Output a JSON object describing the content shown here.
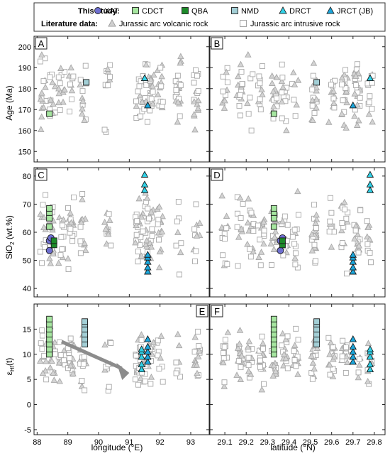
{
  "legend": {
    "this_study_label": "This study:",
    "literature_label": "Literature data:",
    "items": [
      {
        "key": "XAT",
        "label": "XAT",
        "shape": "circle",
        "fill": "#6e6fd0"
      },
      {
        "key": "CDCT",
        "label": "CDCT",
        "shape": "square",
        "fill": "#a6e6a0"
      },
      {
        "key": "QBA",
        "label": "QBA",
        "shape": "square",
        "fill": "#1d8a2a"
      },
      {
        "key": "NMD",
        "label": "NMD",
        "shape": "square",
        "fill": "#a3cfd6"
      },
      {
        "key": "DRCT",
        "label": "DRCT",
        "shape": "triangle",
        "fill": "#31d2e8"
      },
      {
        "key": "JRCT",
        "label": "JRCT (JB)",
        "shape": "triangle",
        "fill": "#1aa6dc"
      }
    ],
    "literature_items": [
      {
        "key": "volc",
        "label": "Jurassic arc volcanic rock",
        "shape": "triangle",
        "fill": "#d0d0d0"
      },
      {
        "key": "intr",
        "label": "Jurassic arc intrusive rock",
        "shape": "square",
        "fill": "#ffffff"
      }
    ]
  },
  "rows": {
    "age": {
      "ylabel": "Age (Ma)",
      "ticks": [
        150,
        160,
        170,
        180,
        190,
        200
      ],
      "ylim": [
        145,
        205
      ]
    },
    "sio2": {
      "ylabel_main": "SiO",
      "ylabel_sub": "2",
      "ylabel_tail": " (wt.%)",
      "ticks": [
        40,
        50,
        60,
        70,
        80
      ],
      "ylim": [
        37,
        83
      ]
    },
    "ehf": {
      "ylabel_main": "ε",
      "ylabel_sub": "Hf",
      "ylabel_tail": "(t)",
      "ticks": [
        -5,
        0,
        5,
        10,
        15
      ],
      "ylim": [
        -6,
        20
      ]
    }
  },
  "columns": {
    "lon": {
      "xlabel": "longitude (°E)",
      "ticks": [
        88,
        89,
        90,
        91,
        92,
        93
      ],
      "xlim": [
        87.9,
        93.6
      ]
    },
    "lat": {
      "xlabel": "latitude (°N)",
      "ticks": [
        29.1,
        29.2,
        29.3,
        29.4,
        29.5,
        29.6,
        29.7,
        29.8
      ],
      "xlim": [
        29.03,
        29.85
      ]
    }
  },
  "panel_labels": [
    "A",
    "B",
    "C",
    "D",
    "E",
    "F"
  ],
  "chart_data": [
    {
      "type": "scatter",
      "panel": "A",
      "xlabel": "",
      "ylabel": "Age (Ma)",
      "xlim": [
        87.9,
        93.6
      ],
      "ylim": [
        145,
        205
      ],
      "series": [
        {
          "name": "CDCT",
          "x": [
            88.4
          ],
          "y": [
            168
          ]
        },
        {
          "name": "NMD",
          "x": [
            89.6
          ],
          "y": [
            183
          ]
        },
        {
          "name": "DRCT",
          "x": [
            91.5
          ],
          "y": [
            185
          ]
        },
        {
          "name": "JRCT (JB)",
          "x": [
            91.6
          ],
          "y": [
            172
          ]
        }
      ]
    },
    {
      "type": "scatter",
      "panel": "B",
      "xlabel": "",
      "ylabel": "",
      "xlim": [
        29.03,
        29.85
      ],
      "ylim": [
        145,
        205
      ],
      "series": [
        {
          "name": "CDCT",
          "x": [
            29.33
          ],
          "y": [
            168
          ]
        },
        {
          "name": "NMD",
          "x": [
            29.53
          ],
          "y": [
            183
          ]
        },
        {
          "name": "DRCT",
          "x": [
            29.78
          ],
          "y": [
            185
          ]
        },
        {
          "name": "JRCT (JB)",
          "x": [
            29.7
          ],
          "y": [
            172
          ]
        }
      ]
    },
    {
      "type": "scatter",
      "panel": "C",
      "xlabel": "",
      "ylabel": "SiO2 (wt.%)",
      "xlim": [
        87.9,
        93.6
      ],
      "ylim": [
        37,
        83
      ],
      "series": [
        {
          "name": "XAT",
          "x": [
            88.4,
            88.4,
            88.45
          ],
          "y": [
            57,
            53.5,
            58
          ]
        },
        {
          "name": "CDCT",
          "x": [
            88.4,
            88.4,
            88.4,
            88.4
          ],
          "y": [
            62,
            65,
            67,
            68.5
          ]
        },
        {
          "name": "QBA",
          "x": [
            88.55,
            88.55
          ],
          "y": [
            55.5,
            57
          ]
        },
        {
          "name": "DRCT",
          "x": [
            91.5,
            91.5,
            91.5
          ],
          "y": [
            80.5,
            77,
            75
          ]
        },
        {
          "name": "JRCT (JB)",
          "x": [
            91.6,
            91.6,
            91.6,
            91.6,
            91.6
          ],
          "y": [
            46,
            47.5,
            49.5,
            51,
            52
          ]
        }
      ]
    },
    {
      "type": "scatter",
      "panel": "D",
      "xlabel": "",
      "ylabel": "",
      "xlim": [
        29.03,
        29.85
      ],
      "ylim": [
        37,
        83
      ],
      "series": [
        {
          "name": "XAT",
          "x": [
            29.36,
            29.36,
            29.37
          ],
          "y": [
            57,
            53.5,
            58
          ]
        },
        {
          "name": "CDCT",
          "x": [
            29.33,
            29.33,
            29.33,
            29.33
          ],
          "y": [
            62,
            65,
            67,
            68.5
          ]
        },
        {
          "name": "QBA",
          "x": [
            29.37,
            29.37
          ],
          "y": [
            55.5,
            57
          ]
        },
        {
          "name": "DRCT",
          "x": [
            29.78,
            29.78,
            29.78
          ],
          "y": [
            80.5,
            77,
            75
          ]
        },
        {
          "name": "JRCT (JB)",
          "x": [
            29.7,
            29.7,
            29.7,
            29.7,
            29.7
          ],
          "y": [
            46,
            47.5,
            49.5,
            51,
            52
          ]
        }
      ]
    },
    {
      "type": "scatter",
      "panel": "E",
      "xlabel": "longitude (°E)",
      "ylabel": "εHf(t)",
      "xlim": [
        87.9,
        93.6
      ],
      "ylim": [
        -6,
        20
      ],
      "series": [
        {
          "name": "CDCT",
          "x": [
            88.4,
            88.4,
            88.4,
            88.4,
            88.4,
            88.4,
            88.4,
            88.4
          ],
          "y": [
            10,
            11,
            12,
            13,
            14,
            15,
            16,
            17
          ]
        },
        {
          "name": "NMD",
          "x": [
            89.55,
            89.55,
            89.55,
            89.55,
            89.55,
            89.55
          ],
          "y": [
            12,
            13,
            14,
            15,
            16,
            16.5
          ]
        },
        {
          "name": "DRCT",
          "x": [
            91.4,
            91.4,
            91.4,
            91.4,
            91.4
          ],
          "y": [
            7,
            8,
            9.5,
            10.5,
            11
          ]
        },
        {
          "name": "JRCT (JB)",
          "x": [
            91.6,
            91.6,
            91.6,
            91.6,
            91.6
          ],
          "y": [
            8.5,
            9.5,
            10.5,
            11.5,
            13
          ]
        }
      ]
    },
    {
      "type": "scatter",
      "panel": "F",
      "xlabel": "latitude (°N)",
      "ylabel": "",
      "xlim": [
        29.03,
        29.85
      ],
      "ylim": [
        -6,
        20
      ],
      "series": [
        {
          "name": "CDCT",
          "x": [
            29.33,
            29.33,
            29.33,
            29.33,
            29.33,
            29.33,
            29.33,
            29.33
          ],
          "y": [
            10,
            11,
            12,
            13,
            14,
            15,
            16,
            17
          ]
        },
        {
          "name": "NMD",
          "x": [
            29.53,
            29.53,
            29.53,
            29.53,
            29.53,
            29.53
          ],
          "y": [
            12,
            13,
            14,
            15,
            16,
            16.5
          ]
        },
        {
          "name": "DRCT",
          "x": [
            29.78,
            29.78,
            29.78,
            29.78,
            29.78
          ],
          "y": [
            7,
            8,
            9.5,
            10.5,
            11
          ]
        },
        {
          "name": "JRCT (JB)",
          "x": [
            29.7,
            29.7,
            29.7,
            29.7,
            29.7
          ],
          "y": [
            8.5,
            9.5,
            10.5,
            11.5,
            13
          ]
        }
      ]
    }
  ],
  "annotation": {
    "arrow": "trend arrow",
    "arrow_color": "#8c8c8c"
  }
}
